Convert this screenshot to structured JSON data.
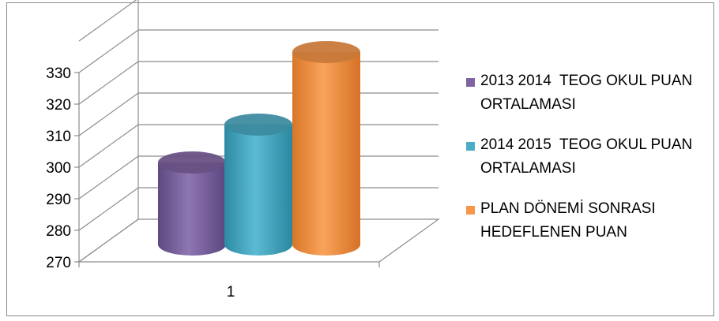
{
  "chart_data": {
    "type": "bar",
    "style": "3d-cylinder",
    "categories": [
      "1"
    ],
    "series": [
      {
        "name": "2013 2014  TEOG OKUL PUAN ORTALAMASI",
        "values": [
          296
        ],
        "color": "#8064a2"
      },
      {
        "name": "2014 2015  TEOG OKUL PUAN ORTALAMASI",
        "values": [
          308
        ],
        "color": "#4bacc6"
      },
      {
        "name": "PLAN DÖNEMİ SONRASI HEDEFLENEN PUAN",
        "values": [
          331
        ],
        "color": "#f79646"
      }
    ],
    "yticks": [
      270,
      280,
      290,
      300,
      310,
      320,
      330
    ],
    "ylim": [
      270,
      340
    ],
    "grid": true,
    "legend_position": "right",
    "title": "",
    "xlabel": "",
    "ylabel": ""
  }
}
